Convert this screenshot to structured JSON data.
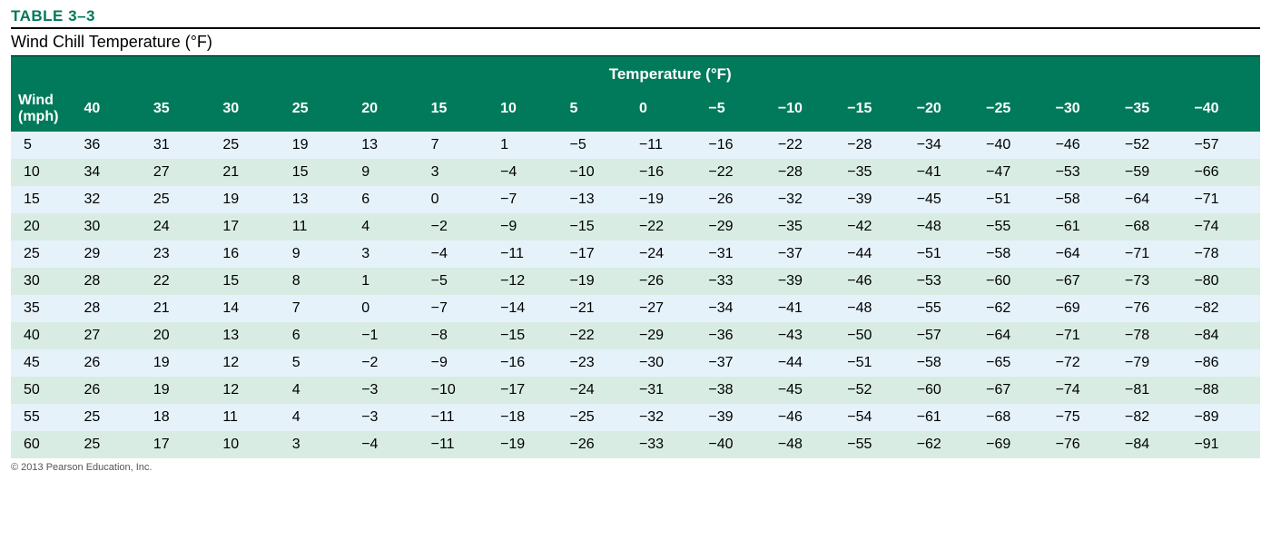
{
  "table": {
    "label": "TABLE 3–3",
    "label_color": "#007a5a",
    "title": "Wind Chill Temperature (°F)",
    "header_bg": "#007a5a",
    "row_colors": {
      "even": "#d8ece3",
      "odd": "#e6f2fa"
    },
    "super_header": "Temperature (°F)",
    "wind_header": "Wind\n(mph)",
    "temp_columns": [
      40,
      35,
      30,
      25,
      20,
      15,
      10,
      5,
      0,
      -5,
      -10,
      -15,
      -20,
      -25,
      -30,
      -35,
      -40
    ],
    "wind_rows": [
      5,
      10,
      15,
      20,
      25,
      30,
      35,
      40,
      45,
      50,
      55,
      60
    ],
    "data": [
      [
        36,
        31,
        25,
        19,
        13,
        7,
        1,
        -5,
        -11,
        -16,
        -22,
        -28,
        -34,
        -40,
        -46,
        -52,
        -57
      ],
      [
        34,
        27,
        21,
        15,
        9,
        3,
        -4,
        -10,
        -16,
        -22,
        -28,
        -35,
        -41,
        -47,
        -53,
        -59,
        -66
      ],
      [
        32,
        25,
        19,
        13,
        6,
        0,
        -7,
        -13,
        -19,
        -26,
        -32,
        -39,
        -45,
        -51,
        -58,
        -64,
        -71
      ],
      [
        30,
        24,
        17,
        11,
        4,
        -2,
        -9,
        -15,
        -22,
        -29,
        -35,
        -42,
        -48,
        -55,
        -61,
        -68,
        -74
      ],
      [
        29,
        23,
        16,
        9,
        3,
        -4,
        -11,
        -17,
        -24,
        -31,
        -37,
        -44,
        -51,
        -58,
        -64,
        -71,
        -78
      ],
      [
        28,
        22,
        15,
        8,
        1,
        -5,
        -12,
        -19,
        -26,
        -33,
        -39,
        -46,
        -53,
        -60,
        -67,
        -73,
        -80
      ],
      [
        28,
        21,
        14,
        7,
        0,
        -7,
        -14,
        -21,
        -27,
        -34,
        -41,
        -48,
        -55,
        -62,
        -69,
        -76,
        -82
      ],
      [
        27,
        20,
        13,
        6,
        -1,
        -8,
        -15,
        -22,
        -29,
        -36,
        -43,
        -50,
        -57,
        -64,
        -71,
        -78,
        -84
      ],
      [
        26,
        19,
        12,
        5,
        -2,
        -9,
        -16,
        -23,
        -30,
        -37,
        -44,
        -51,
        -58,
        -65,
        -72,
        -79,
        -86
      ],
      [
        26,
        19,
        12,
        4,
        -3,
        -10,
        -17,
        -24,
        -31,
        -38,
        -45,
        -52,
        -60,
        -67,
        -74,
        -81,
        -88
      ],
      [
        25,
        18,
        11,
        4,
        -3,
        -11,
        -18,
        -25,
        -32,
        -39,
        -46,
        -54,
        -61,
        -68,
        -75,
        -82,
        -89
      ],
      [
        25,
        17,
        10,
        3,
        -4,
        -11,
        -19,
        -26,
        -33,
        -40,
        -48,
        -55,
        -62,
        -69,
        -76,
        -84,
        -91
      ]
    ],
    "copyright": "© 2013 Pearson Education, Inc."
  }
}
